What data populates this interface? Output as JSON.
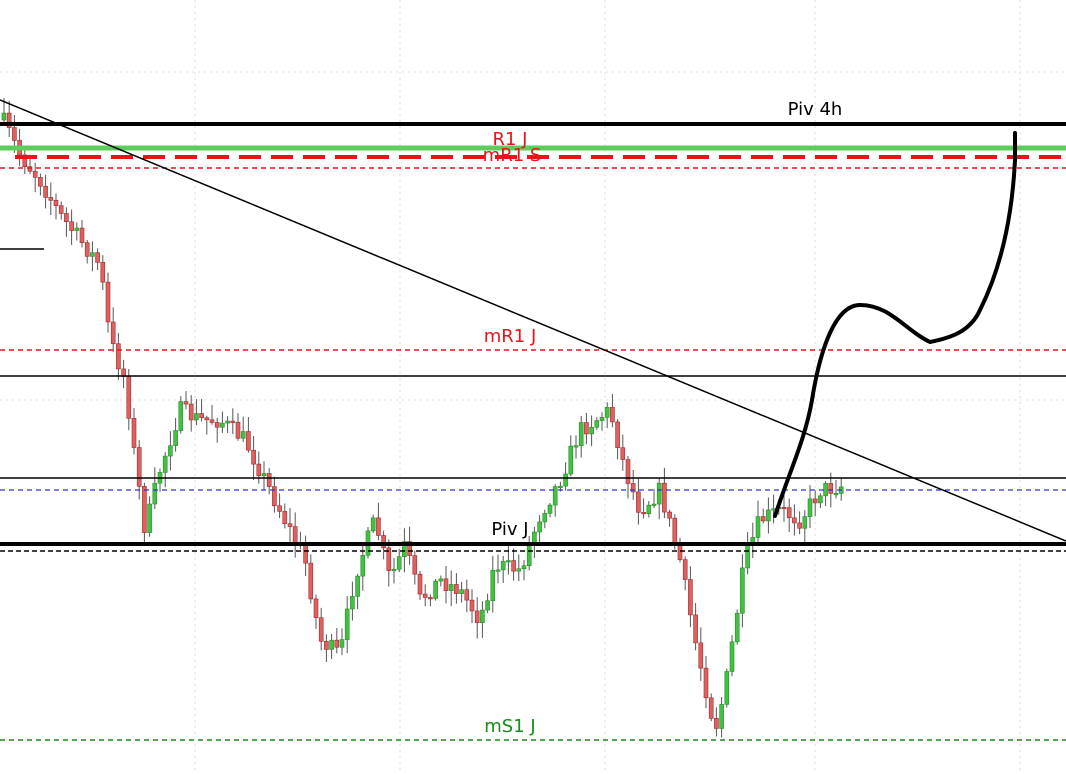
{
  "levels": [
    {
      "label": "Piv 4h"
    },
    {
      "label": "R1 J"
    },
    {
      "label": "mR1 S"
    },
    {
      "label": "mR1 J"
    },
    {
      "label": "Piv J"
    },
    {
      "label": "mS1 J"
    }
  ]
}
